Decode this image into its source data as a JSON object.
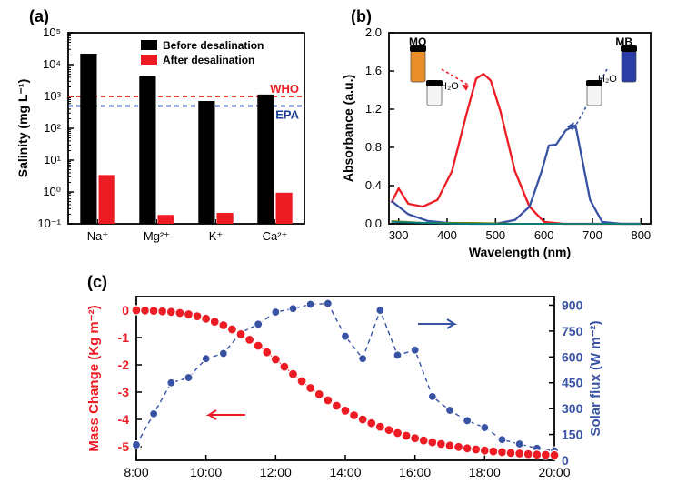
{
  "panel_a": {
    "label": "(a)",
    "type": "bar_log",
    "ylabel": "Salinity (mg L⁻¹)",
    "categories": [
      "Na⁺",
      "Mg²⁺",
      "K⁺",
      "Ca²⁺"
    ],
    "before": [
      22000,
      4500,
      720,
      1150
    ],
    "after": [
      3.4,
      0.19,
      0.22,
      0.95
    ],
    "before_color": "#000000",
    "after_color": "#ed1c24",
    "legend": {
      "before_label": "Before desalination",
      "after_label": "After desalination"
    },
    "ref_lines": {
      "who": {
        "label": "WHO",
        "y": 1000,
        "color": "#ed1c24"
      },
      "epa": {
        "label": "EPA",
        "y": 500,
        "color": "#1b3f95"
      }
    },
    "ylim_exp": [
      -1,
      5
    ],
    "yticks_exp": [
      -1,
      0,
      1,
      2,
      3,
      4,
      5
    ],
    "ytick_labels": [
      "10⁻¹",
      "10⁰",
      "10¹",
      "10²",
      "10³",
      "10⁴",
      "10⁵"
    ],
    "axis_fontsize": 14,
    "tick_fontsize": 13,
    "legend_fontsize": 12,
    "line_dash": "5,4",
    "axis_linewidth": 1.8
  },
  "panel_b": {
    "label": "(b)",
    "type": "line",
    "xlabel": "Wavelength (nm)",
    "ylabel": "Absorbance (a.u.)",
    "xlim": [
      280,
      820
    ],
    "ylim": [
      0,
      2.0
    ],
    "xticks": [
      300,
      400,
      500,
      600,
      700,
      800
    ],
    "yticks": [
      0.0,
      0.4,
      0.8,
      1.2,
      1.6,
      2.0
    ],
    "curves": {
      "MO": {
        "color": "#ed1c24",
        "width": 2.3,
        "x": [
          285,
          300,
          320,
          350,
          380,
          410,
          440,
          460,
          475,
          490,
          510,
          540,
          570,
          600,
          640,
          700,
          800
        ],
        "y": [
          0.22,
          0.37,
          0.21,
          0.18,
          0.25,
          0.55,
          1.15,
          1.52,
          1.57,
          1.5,
          1.18,
          0.55,
          0.18,
          0.02,
          0,
          0,
          0
        ]
      },
      "MB": {
        "color": "#3953a4",
        "width": 2.3,
        "x": [
          285,
          320,
          360,
          400,
          450,
          500,
          540,
          570,
          595,
          610,
          625,
          645,
          665,
          695,
          720,
          760,
          800
        ],
        "y": [
          0.24,
          0.1,
          0.03,
          0.01,
          0,
          0,
          0.04,
          0.18,
          0.55,
          0.82,
          0.83,
          0.98,
          1.03,
          0.25,
          0.02,
          0,
          0
        ]
      },
      "MO_aft": {
        "color": "#7e7e00",
        "width": 1.8,
        "x": [
          285,
          350,
          450,
          550,
          650,
          800
        ],
        "y": [
          0.03,
          0.01,
          0.01,
          0,
          0,
          0
        ]
      },
      "MB_aft": {
        "color": "#007f7f",
        "width": 1.8,
        "x": [
          285,
          350,
          450,
          550,
          650,
          800
        ],
        "y": [
          0.02,
          0.01,
          0,
          0,
          0,
          0
        ]
      }
    },
    "annotations": {
      "MO": "MO",
      "MB": "MB",
      "H2O_left": "H₂O",
      "H2O_right": "H₂O"
    },
    "vials": {
      "mo_color": "#e98f2a",
      "mb_color": "#2a3ea5",
      "cap_color": "#000000",
      "clear_color": "#f5f5f5"
    },
    "axis_fontsize": 14,
    "tick_fontsize": 13,
    "axis_linewidth": 1.8
  },
  "panel_c": {
    "label": "(c)",
    "type": "dual_axis",
    "xlabel_none": "",
    "ylabel_left": "Mass Change (Kg m⁻²)",
    "ylabel_right": "Solar flux (W m⁻²)",
    "xlim": [
      8,
      20
    ],
    "xticks": [
      8,
      10,
      12,
      14,
      16,
      18,
      20
    ],
    "xtick_labels": [
      "8:00",
      "10:00",
      "12:00",
      "14:00",
      "16:00",
      "18:00",
      "20:00"
    ],
    "ylim_left": [
      -5.5,
      0.5
    ],
    "yticks_left": [
      -5,
      -4,
      -3,
      -2,
      -1,
      0
    ],
    "ylim_right": [
      0,
      950
    ],
    "yticks_right": [
      0,
      150,
      300,
      450,
      600,
      750,
      900
    ],
    "mass": {
      "color": "#ed1c24",
      "marker_fill": "#ed1c24",
      "marker_edge": "#ffffff",
      "marker_size": 5,
      "line_width": 1,
      "x": [
        8,
        8.25,
        8.5,
        8.75,
        9,
        9.25,
        9.5,
        9.75,
        10,
        10.25,
        10.5,
        10.75,
        11,
        11.25,
        11.5,
        11.75,
        12,
        12.25,
        12.5,
        12.75,
        13,
        13.25,
        13.5,
        13.75,
        14,
        14.25,
        14.5,
        14.75,
        15,
        15.25,
        15.5,
        15.75,
        16,
        16.25,
        16.5,
        16.75,
        17,
        17.25,
        17.5,
        17.75,
        18,
        18.25,
        18.5,
        18.75,
        19,
        19.25,
        19.5,
        19.75,
        20
      ],
      "y": [
        0,
        -0.01,
        -0.02,
        -0.04,
        -0.06,
        -0.1,
        -0.15,
        -0.22,
        -0.31,
        -0.42,
        -0.55,
        -0.7,
        -0.88,
        -1.08,
        -1.3,
        -1.54,
        -1.8,
        -2.07,
        -2.34,
        -2.6,
        -2.85,
        -3.08,
        -3.3,
        -3.5,
        -3.68,
        -3.85,
        -4,
        -4.14,
        -4.27,
        -4.39,
        -4.5,
        -4.6,
        -4.69,
        -4.77,
        -4.84,
        -4.9,
        -4.96,
        -5.01,
        -5.06,
        -5.1,
        -5.14,
        -5.17,
        -5.2,
        -5.23,
        -5.25,
        -5.27,
        -5.29,
        -5.3,
        -5.31
      ]
    },
    "flux": {
      "color": "#3953a4",
      "marker_fill": "#3953a4",
      "marker_edge": "#ffffff",
      "marker_size": 4.5,
      "line_width": 1.4,
      "dash": "5,4",
      "x": [
        8,
        8.5,
        9,
        9.5,
        10,
        10.5,
        11,
        11.5,
        12,
        12.5,
        13,
        13.5,
        14,
        14.5,
        15,
        15.5,
        16,
        16.5,
        17,
        17.5,
        18,
        18.5,
        19,
        19.5,
        20
      ],
      "y": [
        90,
        270,
        450,
        480,
        590,
        620,
        740,
        790,
        860,
        880,
        905,
        910,
        720,
        590,
        870,
        610,
        640,
        370,
        290,
        230,
        190,
        120,
        95,
        70,
        55
      ]
    },
    "axis_fontsize": 15,
    "tick_fontsize": 14,
    "axis_linewidth": 1.8,
    "left_color": "#ed1c24",
    "right_color": "#3953a4"
  }
}
